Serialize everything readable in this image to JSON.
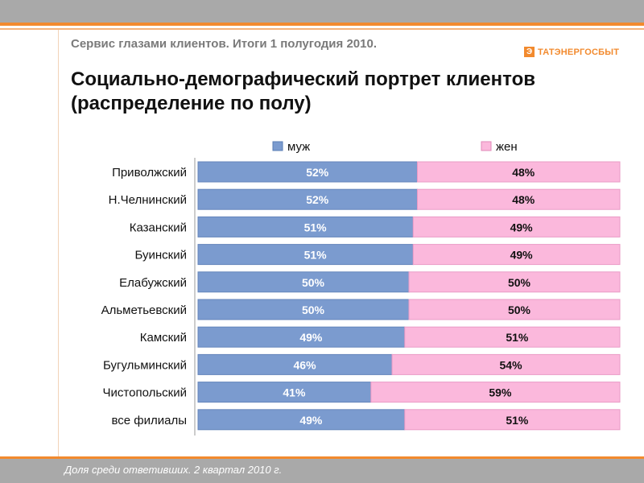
{
  "header": {
    "subtitle": "Сервис глазами клиентов. Итоги 1 полугодия 2010.",
    "logo_mark": "Э",
    "logo_text": "ТАТЭНЕРГОСБЫТ",
    "title": "Социально-демографический портрет клиентов (распределение по полу)"
  },
  "footer": {
    "note": "Доля среди ответивших. 2 квартал 2010 г."
  },
  "colors": {
    "male": "#7b9bcf",
    "female": "#fbb8dc",
    "accent": "#f28a2e"
  },
  "chart_data": {
    "type": "bar",
    "orientation": "horizontal",
    "stacked": true,
    "normalized": true,
    "legend_position": "top",
    "categories": [
      "Приволжский",
      "Н.Челнинский",
      "Казанский",
      "Буинский",
      "Елабужский",
      "Альметьевский",
      "Камский",
      "Бугульминский",
      "Чистопольский",
      "все филиалы"
    ],
    "series": [
      {
        "name": "муж",
        "values": [
          52,
          52,
          51,
          51,
          50,
          50,
          49,
          46,
          41,
          49
        ],
        "labels": [
          "52%",
          "52%",
          "51%",
          "51%",
          "50%",
          "50%",
          "49%",
          "46%",
          "41%",
          "49%"
        ]
      },
      {
        "name": "жен",
        "values": [
          48,
          48,
          49,
          49,
          50,
          50,
          51,
          54,
          59,
          51
        ],
        "labels": [
          "48%",
          "48%",
          "49%",
          "49%",
          "50%",
          "50%",
          "51%",
          "54%",
          "59%",
          "51%"
        ]
      }
    ],
    "xlim": [
      0,
      100
    ]
  }
}
